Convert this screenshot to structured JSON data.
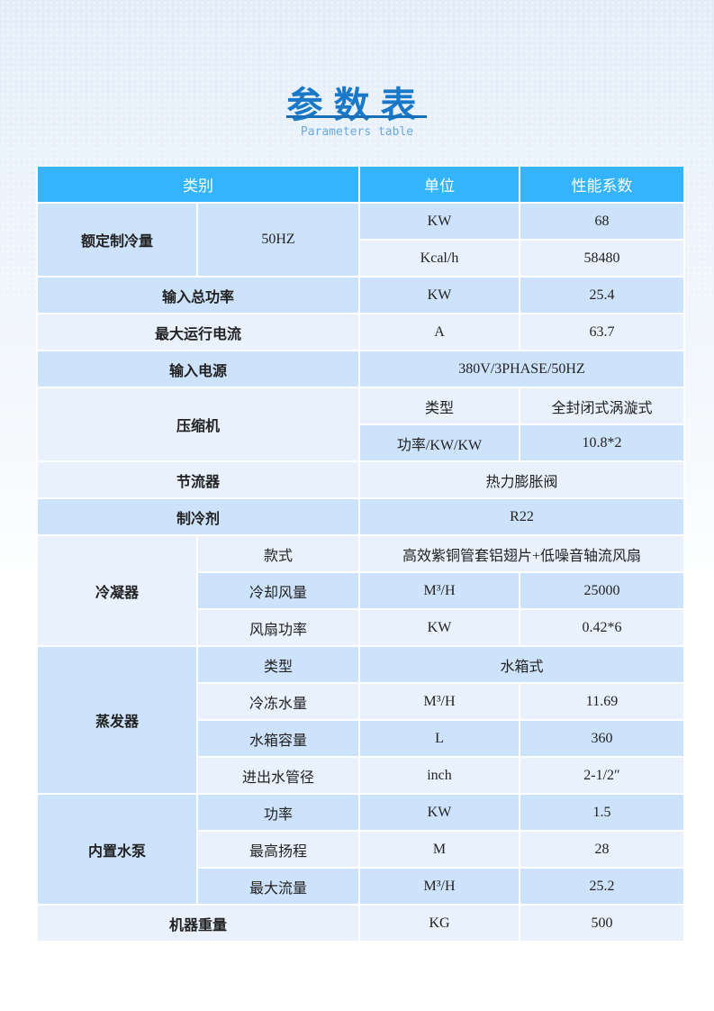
{
  "title": "参数表",
  "subtitle": "Parameters table",
  "colors": {
    "header": "#34b5fb",
    "row_dark": "#cde3fb",
    "row_light": "#e8f1fc",
    "title": "#1a78c8"
  },
  "headers": [
    "类别",
    "单位",
    "性能系数"
  ],
  "rows": [
    {
      "cells": [
        {
          "t": "额定制冷量",
          "rs": 2,
          "b": 1
        },
        {
          "t": "50HZ",
          "rs": 2
        },
        {
          "t": "KW"
        },
        {
          "t": "68"
        }
      ]
    },
    {
      "cells": [
        {
          "t": "Kcal/h"
        },
        {
          "t": "58480"
        }
      ]
    },
    {
      "cells": [
        {
          "t": "输入总功率",
          "cs": 2,
          "b": 1
        },
        {
          "t": "KW"
        },
        {
          "t": "25.4"
        }
      ]
    },
    {
      "cells": [
        {
          "t": "最大运行电流",
          "cs": 2,
          "b": 1
        },
        {
          "t": "A"
        },
        {
          "t": "63.7"
        }
      ]
    },
    {
      "cells": [
        {
          "t": "输入电源",
          "cs": 2,
          "b": 1
        },
        {
          "t": "380V/3PHASE/50HZ",
          "cs": 2
        }
      ]
    },
    {
      "cells": [
        {
          "t": "压缩机",
          "cs": 2,
          "rs": 2,
          "b": 1
        },
        {
          "t": "类型"
        },
        {
          "t": "全封闭式涡漩式"
        }
      ]
    },
    {
      "cells": [
        {
          "t": "功率/KW/KW"
        },
        {
          "t": "10.8*2"
        }
      ]
    },
    {
      "cells": [
        {
          "t": "节流器",
          "cs": 2,
          "b": 1
        },
        {
          "t": "热力膨胀阀",
          "cs": 2
        }
      ]
    },
    {
      "cells": [
        {
          "t": "制冷剂",
          "cs": 2,
          "b": 1
        },
        {
          "t": "R22",
          "cs": 2
        }
      ]
    },
    {
      "cells": [
        {
          "t": "冷凝器",
          "rs": 3,
          "b": 1
        },
        {
          "t": "款式"
        },
        {
          "t": "高效紫铜管套铝翅片+低噪音轴流风扇",
          "cs": 2
        }
      ]
    },
    {
      "cells": [
        {
          "t": "冷却风量"
        },
        {
          "t": "M³/H"
        },
        {
          "t": "25000"
        }
      ]
    },
    {
      "cells": [
        {
          "t": "风扇功率"
        },
        {
          "t": "KW"
        },
        {
          "t": "0.42*6"
        }
      ]
    },
    {
      "cells": [
        {
          "t": "蒸发器",
          "rs": 4,
          "b": 1
        },
        {
          "t": "类型"
        },
        {
          "t": "水箱式",
          "cs": 2
        }
      ]
    },
    {
      "cells": [
        {
          "t": "冷冻水量"
        },
        {
          "t": "M³/H"
        },
        {
          "t": "11.69"
        }
      ]
    },
    {
      "cells": [
        {
          "t": "水箱容量"
        },
        {
          "t": "L"
        },
        {
          "t": "360"
        }
      ]
    },
    {
      "cells": [
        {
          "t": "进出水管径"
        },
        {
          "t": "inch"
        },
        {
          "t": "2-1/2″"
        }
      ]
    },
    {
      "cells": [
        {
          "t": "内置水泵",
          "rs": 3,
          "b": 1
        },
        {
          "t": "功率"
        },
        {
          "t": "KW"
        },
        {
          "t": "1.5"
        }
      ]
    },
    {
      "cells": [
        {
          "t": "最高扬程"
        },
        {
          "t": "M"
        },
        {
          "t": "28"
        }
      ]
    },
    {
      "cells": [
        {
          "t": "最大流量"
        },
        {
          "t": "M³/H"
        },
        {
          "t": "25.2"
        }
      ]
    },
    {
      "cells": [
        {
          "t": "机器重量",
          "cs": 2,
          "b": 1
        },
        {
          "t": "KG"
        },
        {
          "t": "500"
        }
      ]
    }
  ]
}
